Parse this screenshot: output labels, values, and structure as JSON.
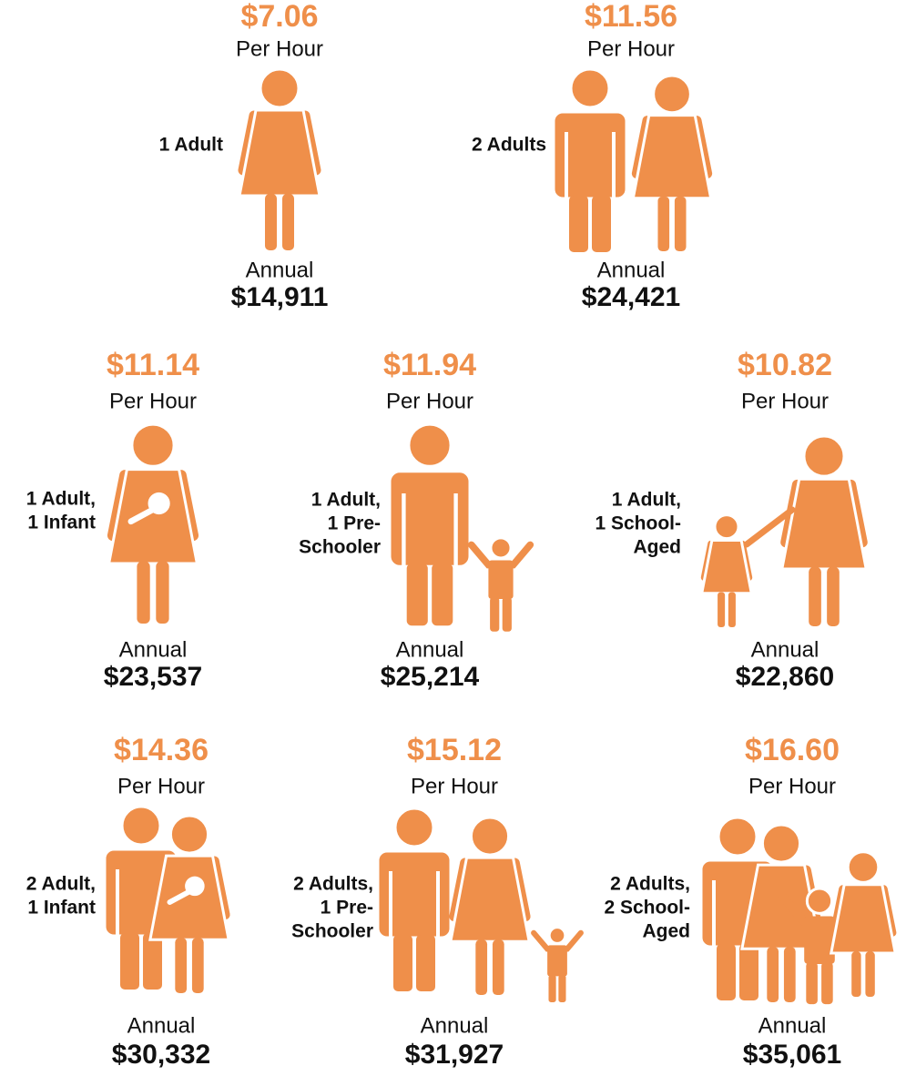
{
  "items": [
    {
      "wage": "$7.06",
      "rate_label": "Per Hour",
      "household": [
        "1 Adult"
      ],
      "annual_label": "Annual",
      "annual": "$14,911"
    },
    {
      "wage": "$11.56",
      "rate_label": "Per Hour",
      "household": [
        "2 Adults"
      ],
      "annual_label": "Annual",
      "annual": "$24,421"
    },
    {
      "wage": "$11.14",
      "rate_label": "Per Hour",
      "household": [
        "1 Adult,",
        "1  Infant"
      ],
      "annual_label": "Annual",
      "annual": "$23,537"
    },
    {
      "wage": "$11.94",
      "rate_label": "Per Hour",
      "household": [
        "1 Adult,",
        "1 Pre-",
        "Schooler"
      ],
      "annual_label": "Annual",
      "annual": "$25,214"
    },
    {
      "wage": "$10.82",
      "rate_label": "Per Hour",
      "household": [
        "1 Adult,",
        "1 School-",
        "Aged"
      ],
      "annual_label": "Annual",
      "annual": "$22,860"
    },
    {
      "wage": "$14.36",
      "rate_label": "Per Hour",
      "household": [
        "2 Adult,",
        "1  Infant"
      ],
      "annual_label": "Annual",
      "annual": "$30,332"
    },
    {
      "wage": "$15.12",
      "rate_label": "Per Hour",
      "household": [
        "2 Adults,",
        "1 Pre-",
        "Schooler"
      ],
      "annual_label": "Annual",
      "annual": "$31,927"
    },
    {
      "wage": "$16.60",
      "rate_label": "Per Hour",
      "household": [
        "2 Adults,",
        "2 School-",
        "Aged"
      ],
      "annual_label": "Annual",
      "annual": "$35,061"
    }
  ]
}
